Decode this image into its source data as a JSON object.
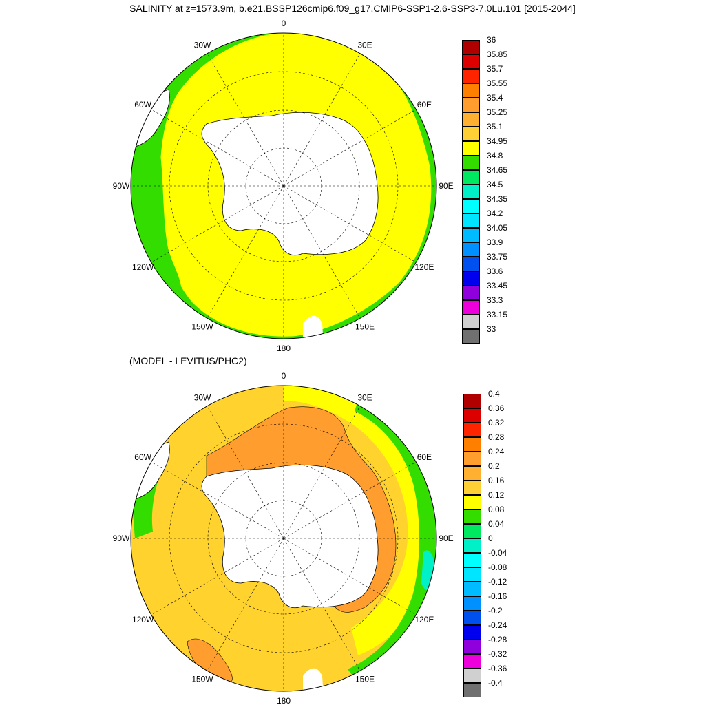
{
  "title": "SALINITY at z=1573.9m, b.e21.BSSP126cmip6.f09_g17.CMIP6-SSP1-2.6-SSP3-7.0Lu.101 [2015-2044]",
  "subtitle": "(MODEL - LEVITUS/PHC2)",
  "longitude_labels": [
    "0",
    "30E",
    "60E",
    "90E",
    "120E",
    "150E",
    "180",
    "150W",
    "120W",
    "90W",
    "60W",
    "30W"
  ],
  "colors": {
    "land": "#ffffff",
    "outline": "#000000"
  },
  "top_map": {
    "field": "salinity",
    "dominant_fill": "#ffff00",
    "margin_fill": "#33dd00",
    "colorbar": {
      "labels": [
        "36",
        "35.85",
        "35.7",
        "35.55",
        "35.4",
        "35.25",
        "35.1",
        "34.95",
        "34.8",
        "34.65",
        "34.5",
        "34.35",
        "34.2",
        "34.05",
        "33.9",
        "33.75",
        "33.6",
        "33.45",
        "33.3",
        "33.15",
        "33"
      ],
      "colors": [
        "#b00000",
        "#dd0000",
        "#ff2400",
        "#ff7f00",
        "#ff9d2f",
        "#ffb030",
        "#ffd035",
        "#ffff00",
        "#33dd00",
        "#00e860",
        "#00f0c8",
        "#00ffff",
        "#00e5ff",
        "#00bbff",
        "#0090ff",
        "#0050f0",
        "#0000ee",
        "#9000dd",
        "#ee00dd",
        "#d0d0d0",
        "#707070"
      ]
    }
  },
  "bottom_map": {
    "field": "model minus observed salinity",
    "dominant_fill": "#ffd22e",
    "colorbar": {
      "labels": [
        "0.4",
        "0.36",
        "0.32",
        "0.28",
        "0.24",
        "0.2",
        "0.16",
        "0.12",
        "0.08",
        "0.04",
        "0",
        "-0.04",
        "-0.08",
        "-0.12",
        "-0.16",
        "-0.2",
        "-0.24",
        "-0.28",
        "-0.32",
        "-0.36",
        "-0.4"
      ],
      "colors": [
        "#b00000",
        "#dd0000",
        "#ff2400",
        "#ff7f00",
        "#ff9d2f",
        "#ffb030",
        "#ffd035",
        "#ffff00",
        "#33dd00",
        "#00e860",
        "#00f0c8",
        "#00ffff",
        "#00e5ff",
        "#00bbff",
        "#0090ff",
        "#0050f0",
        "#0000ee",
        "#9000dd",
        "#ee00dd",
        "#d0d0d0",
        "#707070"
      ]
    }
  }
}
